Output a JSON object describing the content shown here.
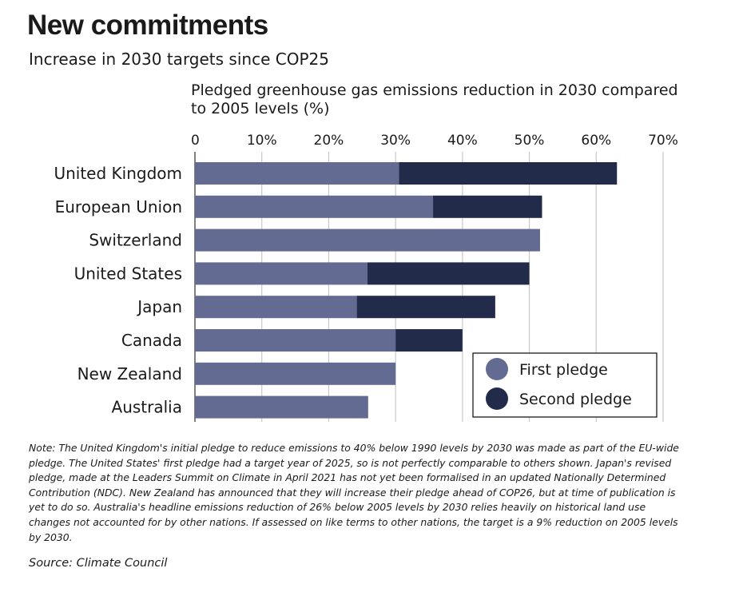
{
  "header": {
    "title": "New commitments",
    "subtitle": "Increase in 2030 targets since COP25"
  },
  "chart_data": {
    "type": "bar",
    "orientation": "horizontal",
    "stacked": true,
    "axis_title": "Pledged greenhouse gas emissions reduction in 2030 compared to 2005 levels (%)",
    "categories": [
      "United Kingdom",
      "European Union",
      "Switzerland",
      "United States",
      "Japan",
      "Canada",
      "New Zealand",
      "Australia"
    ],
    "series": [
      {
        "name": "First pledge",
        "color": "#646b92",
        "values": [
          30.5,
          35.6,
          51.6,
          25.8,
          24.2,
          30.0,
          30.0,
          25.9
        ]
      },
      {
        "name": "Second pledge",
        "color": "#232b4b",
        "values": [
          32.6,
          16.3,
          0,
          24.2,
          20.7,
          10.0,
          0,
          0
        ]
      }
    ],
    "totals": [
      63.1,
      51.9,
      51.6,
      50.0,
      44.9,
      40.0,
      30.0,
      25.9
    ],
    "xlim": [
      0,
      70
    ],
    "xticks": [
      0,
      10,
      20,
      30,
      40,
      50,
      60,
      70
    ],
    "xtick_labels": [
      "0",
      "10%",
      "20%",
      "30%",
      "40%",
      "50%",
      "60%",
      "70%"
    ],
    "grid": true,
    "legend_position": "bottom-right"
  },
  "footer": {
    "note": "Note: The United Kingdom's initial pledge to reduce emissions to 40% below 1990 levels by 2030 was made as part of the EU-wide pledge. The United States' first pledge had a target year of 2025, so is not perfectly comparable to others shown. Japan's revised pledge, made at the Leaders Summit on Climate in April 2021 has not yet been formalised in an updated Nationally Determined Contribution (NDC). New Zealand has announced that they will increase their pledge ahead of COP26, but at time of publication is yet to do so. Australia's headline emissions reduction of 26% below 2005 levels by 2030 relies heavily on historical land use changes not accounted for by other nations. If assessed on like terms to other nations, the target is a 9% reduction on 2005 levels by 2030.",
    "source": "Source: Climate Council"
  }
}
